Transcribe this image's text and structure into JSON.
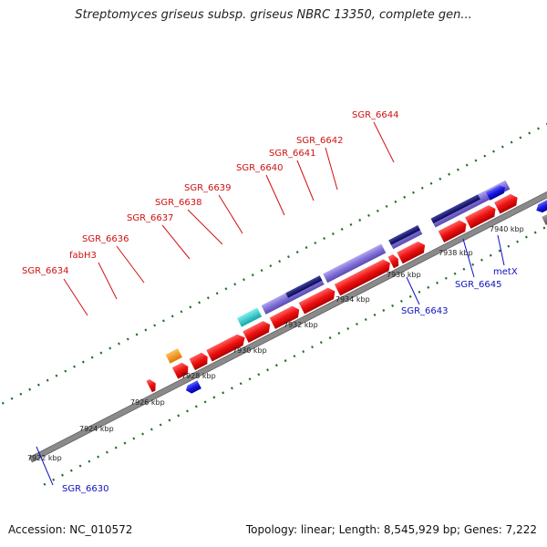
{
  "title": "Streptomyces griseus subsp. griseus NBRC 13350, complete gen...",
  "footer": {
    "accession": "Accession: NC_010572",
    "summary": "Topology: linear; Length: 8,545,929 bp; Genes: 7,222"
  },
  "ruler": {
    "unit": "kbp",
    "ticks": [
      "7922 kbp",
      "7924 kbp",
      "7926 kbp",
      "7928 kbp",
      "7930 kbp",
      "7932 kbp",
      "7934 kbp",
      "7936 kbp",
      "7938 kbp",
      "7940 kbp"
    ]
  },
  "gene_labels": [
    {
      "id": "SGR_6630",
      "text": "SGR_6630",
      "color": "#1010c0"
    },
    {
      "id": "SGR_6634",
      "text": "SGR_6634",
      "color": "#d01010"
    },
    {
      "id": "fabH3",
      "text": "fabH3",
      "color": "#d01010"
    },
    {
      "id": "SGR_6636",
      "text": "SGR_6636",
      "color": "#d01010"
    },
    {
      "id": "SGR_6637",
      "text": "SGR_6637",
      "color": "#d01010"
    },
    {
      "id": "SGR_6638",
      "text": "SGR_6638",
      "color": "#d01010"
    },
    {
      "id": "SGR_6639",
      "text": "SGR_6639",
      "color": "#d01010"
    },
    {
      "id": "SGR_6640",
      "text": "SGR_6640",
      "color": "#d01010"
    },
    {
      "id": "SGR_6641",
      "text": "SGR_6641",
      "color": "#d01010"
    },
    {
      "id": "SGR_6642",
      "text": "SGR_6642",
      "color": "#d01010"
    },
    {
      "id": "SGR_6643",
      "text": "SGR_6643",
      "color": "#1010c0"
    },
    {
      "id": "SGR_6644",
      "text": "SGR_6644",
      "color": "#d01010"
    },
    {
      "id": "SGR_6645",
      "text": "SGR_6645",
      "color": "#1010c0"
    },
    {
      "id": "metX",
      "text": "metX",
      "color": "#1010c0"
    }
  ],
  "colors": {
    "forward_gene": "#ee1111",
    "reverse_gene": "#1515e0",
    "cds_feature": "#8070d8",
    "cds_dark": "#101070",
    "steelblue_feature": "#4a80c0",
    "cyan_feature": "#20c8c8",
    "orange_feature": "#f49010",
    "gray_feature": "#707070",
    "lightgray_feature": "#c8c8c8",
    "track_line": "#808080",
    "tick_green": "#207020"
  }
}
